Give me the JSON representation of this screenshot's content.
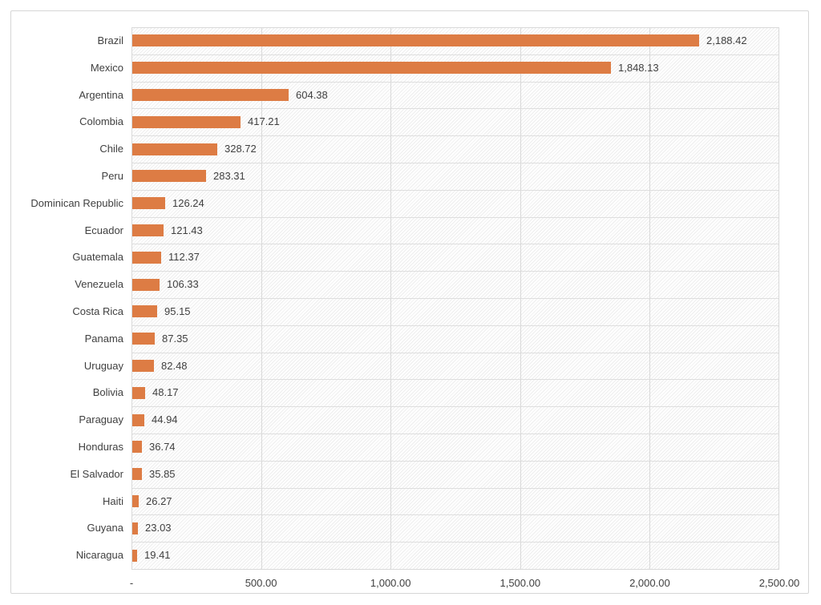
{
  "chart_data": {
    "type": "bar",
    "orientation": "horizontal",
    "title": "",
    "legend": "none",
    "grid": true,
    "categories": [
      "Brazil",
      "Mexico",
      "Argentina",
      "Colombia",
      "Chile",
      "Peru",
      "Dominican Republic",
      "Ecuador",
      "Guatemala",
      "Venezuela",
      "Costa Rica",
      "Panama",
      "Uruguay",
      "Bolivia",
      "Paraguay",
      "Honduras",
      "El Salvador",
      "Haiti",
      "Guyana",
      "Nicaragua"
    ],
    "values": [
      2188.42,
      1848.13,
      604.38,
      417.21,
      328.72,
      283.31,
      126.24,
      121.43,
      112.37,
      106.33,
      95.15,
      87.35,
      82.48,
      48.17,
      44.94,
      36.74,
      35.85,
      26.27,
      23.03,
      19.41
    ],
    "value_labels": [
      "2,188.42",
      "1,848.13",
      "604.38",
      "417.21",
      "328.72",
      "283.31",
      "126.24",
      "121.43",
      "112.37",
      "106.33",
      "95.15",
      "87.35",
      "82.48",
      "48.17",
      "44.94",
      "36.74",
      "35.85",
      "26.27",
      "23.03",
      "19.41"
    ],
    "x_axis": {
      "min": 0,
      "max": 2500,
      "tick_values": [
        0,
        500,
        1000,
        1500,
        2000,
        2500
      ],
      "tick_labels": [
        "-",
        "500.00",
        "1,000.00",
        "1,500.00",
        "2,000.00",
        "2,500.00"
      ]
    },
    "colors": {
      "bar": "#dd7c44",
      "gridline": "#d9d9d9",
      "text": "#404040",
      "frame_border": "#d6d6d6"
    }
  }
}
